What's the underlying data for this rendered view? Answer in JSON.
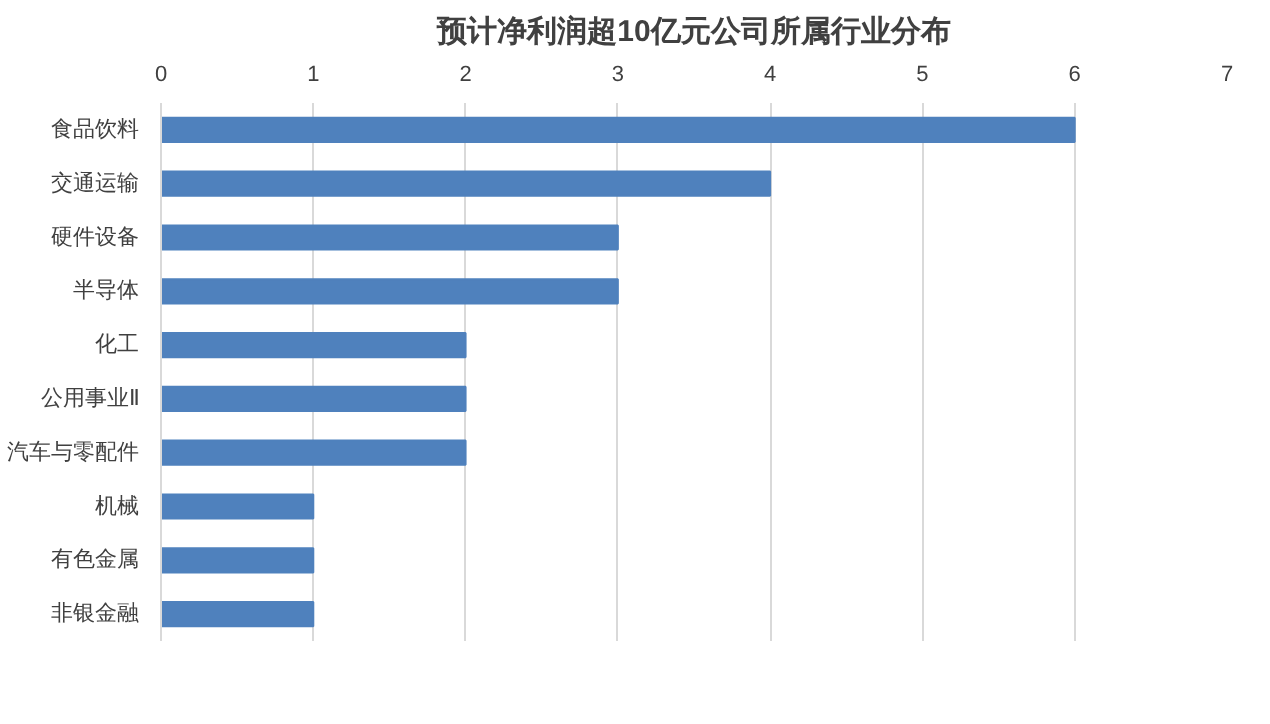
{
  "chart_data": {
    "type": "bar",
    "orientation": "horizontal",
    "title": "预计净利润超10亿元公司所属行业分布",
    "categories": [
      "食品饮料",
      "交通运输",
      "硬件设备",
      "半导体",
      "化工",
      "公用事业Ⅱ",
      "汽车与零配件",
      "机械",
      "有色金属",
      "非银金融"
    ],
    "values": [
      6,
      4,
      3,
      3,
      2,
      2,
      2,
      1,
      1,
      1
    ],
    "color": "#4f81bd",
    "xlim": [
      0,
      7
    ],
    "xticks": [
      0,
      1,
      2,
      3,
      4,
      5,
      6,
      7
    ],
    "grid": "x"
  }
}
